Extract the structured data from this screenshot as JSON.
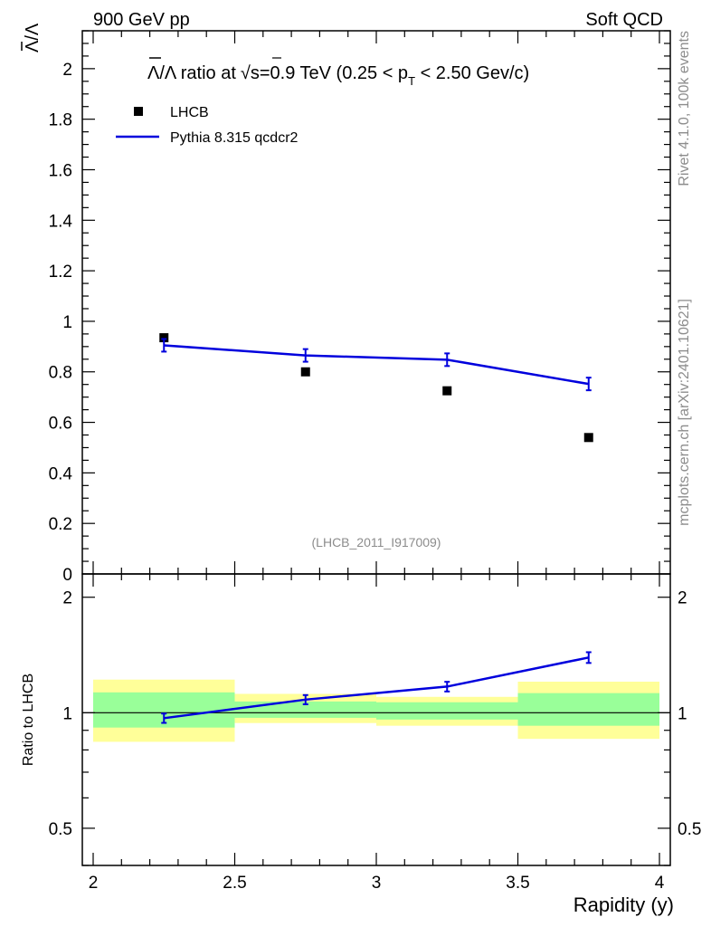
{
  "header": {
    "left": "900 GeV pp",
    "right": "Soft QCD"
  },
  "side": {
    "rivet": "Rivet 4.1.0,  100k events",
    "mcplots": "mcplots.cern.ch [arXiv:2401.10621]"
  },
  "colors": {
    "mc": "#0000dd",
    "data": "#000000",
    "band_inner": "#99ff99",
    "band_outer": "#ffff99"
  },
  "chart_data": [
    {
      "type": "scatter",
      "title": "Λ̄/Λ ratio at √s=0.9 TeV (0.25 < p_T < 2.50 Gev/c)",
      "title_parts": {
        "lambda": "Λ",
        "mid": "/Λ ratio at",
        "sqrt": "√",
        "s_eq": "s=0.9 TeV (0.25 < p",
        "sub": "T",
        "end": " < 2.50 Gev/c)"
      },
      "ylabel_parts": {
        "bar": "Λ",
        "slash": "/",
        "plain": "Λ"
      },
      "xlabel": "Rapidity (y)",
      "watermark": "(LHCB_2011_I917009)",
      "xlim": [
        2,
        4
      ],
      "ylim": [
        0,
        2.15
      ],
      "yticks": [
        0,
        0.2,
        0.4,
        0.6,
        0.8,
        1,
        1.2,
        1.4,
        1.6,
        1.8,
        2
      ],
      "ytick_labels": [
        "0",
        "0.2",
        "0.4",
        "0.6",
        "0.8",
        "1",
        "1.2",
        "1.4",
        "1.6",
        "1.8",
        "2"
      ],
      "series": [
        {
          "name": "LHCB",
          "kind": "points",
          "x": [
            2.25,
            2.75,
            3.25,
            3.75
          ],
          "y": [
            0.935,
            0.8,
            0.725,
            0.54
          ]
        },
        {
          "name": "Pythia 8.315 qcdcr2",
          "kind": "line",
          "x": [
            2.25,
            2.75,
            3.25,
            3.75
          ],
          "y": [
            0.905,
            0.865,
            0.848,
            0.752
          ],
          "err": [
            0.025,
            0.025,
            0.025,
            0.025
          ]
        }
      ]
    },
    {
      "type": "line",
      "ylabel": "Ratio to LHCB",
      "xlim": [
        2,
        4
      ],
      "ylim": [
        0.4,
        2.3
      ],
      "yscale": "log",
      "xticks": [
        2,
        2.5,
        3,
        3.5,
        4
      ],
      "xtick_labels": [
        "2",
        "2.5",
        "3",
        "3.5",
        "4"
      ],
      "yticks": [
        0.5,
        1,
        2
      ],
      "ytick_labels": [
        "0.5",
        "1",
        "2"
      ],
      "bands": {
        "edges": [
          2,
          2.5,
          3,
          3.5,
          4
        ],
        "outer_lo": [
          0.84,
          0.94,
          0.925,
          0.855
        ],
        "outer_hi": [
          1.22,
          1.12,
          1.1,
          1.205
        ],
        "inner_lo": [
          0.915,
          0.97,
          0.96,
          0.925
        ],
        "inner_hi": [
          1.13,
          1.07,
          1.065,
          1.125
        ]
      },
      "series": [
        {
          "name": "Pythia 8.315 qcdcr2 / LHCB",
          "x": [
            2.25,
            2.75,
            3.25,
            3.75
          ],
          "y": [
            0.968,
            1.082,
            1.17,
            1.393
          ],
          "err": [
            0.027,
            0.03,
            0.034,
            0.045
          ]
        }
      ]
    }
  ]
}
